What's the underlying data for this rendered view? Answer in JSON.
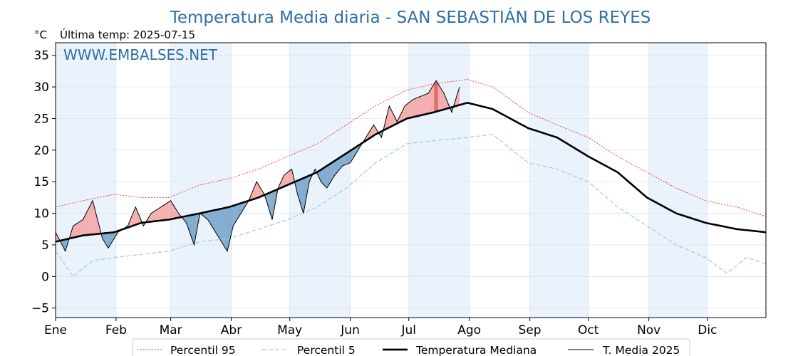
{
  "chart_data": {
    "type": "line",
    "title": "Temperatura Media diaria - SAN SEBASTIÁN DE LOS REYES",
    "y_unit": "°C",
    "last_temp_label": "Última temp: 2025-07-15",
    "watermark": "WWW.EMBALSES.NET",
    "x_ticks": [
      "Ene",
      "Feb",
      "Mar",
      "Abr",
      "May",
      "Jun",
      "Jul",
      "Ago",
      "Sep",
      "Oct",
      "Nov",
      "Dic"
    ],
    "y_ticks": [
      -5,
      0,
      5,
      10,
      15,
      20,
      25,
      30,
      35
    ],
    "ylim": [
      -6.5,
      37
    ],
    "xlim_days": [
      1,
      365
    ],
    "grid": true,
    "legend_position": "bottom-center",
    "colors": {
      "p95": "#e8312d",
      "p5": "#9ecde0",
      "median": "#000000",
      "current": "#000000",
      "above": "#f4a1a1",
      "above_extreme": "#e84a4a",
      "below": "#6f9fc7",
      "band": "#eaf3fb",
      "title": "#2e6fa7"
    },
    "series": [
      {
        "name": "Percentil 95",
        "style": "dotted-red",
        "key": "p95",
        "anchors": [
          [
            1,
            11
          ],
          [
            15,
            12
          ],
          [
            31,
            13
          ],
          [
            45,
            12.5
          ],
          [
            59,
            12.5
          ],
          [
            75,
            14.5
          ],
          [
            90,
            15.5
          ],
          [
            105,
            17
          ],
          [
            120,
            19
          ],
          [
            135,
            21
          ],
          [
            150,
            24
          ],
          [
            165,
            27
          ],
          [
            181,
            29.5
          ],
          [
            195,
            30.5
          ],
          [
            212,
            31.2
          ],
          [
            225,
            30
          ],
          [
            243,
            26
          ],
          [
            258,
            24
          ],
          [
            274,
            22
          ],
          [
            289,
            19
          ],
          [
            304,
            16.5
          ],
          [
            319,
            14
          ],
          [
            334,
            12
          ],
          [
            350,
            11
          ],
          [
            365,
            9.5
          ]
        ]
      },
      {
        "name": "Percentil 5",
        "style": "dashed-lightblue",
        "key": "p5",
        "anchors": [
          [
            1,
            4
          ],
          [
            10,
            0
          ],
          [
            20,
            2.5
          ],
          [
            31,
            3
          ],
          [
            45,
            3.5
          ],
          [
            59,
            4
          ],
          [
            75,
            5.5
          ],
          [
            90,
            6
          ],
          [
            105,
            7.5
          ],
          [
            120,
            9
          ],
          [
            135,
            11
          ],
          [
            150,
            14
          ],
          [
            165,
            18
          ],
          [
            181,
            21
          ],
          [
            195,
            21.5
          ],
          [
            212,
            22
          ],
          [
            225,
            22.5
          ],
          [
            243,
            18
          ],
          [
            258,
            17
          ],
          [
            274,
            15
          ],
          [
            289,
            11
          ],
          [
            304,
            8
          ],
          [
            319,
            5
          ],
          [
            334,
            3
          ],
          [
            345,
            0.5
          ],
          [
            355,
            3
          ],
          [
            365,
            2
          ]
        ]
      },
      {
        "name": "Temperatura Mediana",
        "style": "thick-black",
        "key": "median",
        "anchors": [
          [
            1,
            5.5
          ],
          [
            15,
            6.5
          ],
          [
            31,
            7
          ],
          [
            45,
            8.5
          ],
          [
            59,
            9
          ],
          [
            75,
            10
          ],
          [
            90,
            11
          ],
          [
            105,
            12.5
          ],
          [
            120,
            14.5
          ],
          [
            135,
            16.5
          ],
          [
            150,
            19.5
          ],
          [
            165,
            22.5
          ],
          [
            181,
            25
          ],
          [
            195,
            26
          ],
          [
            212,
            27.5
          ],
          [
            225,
            26.5
          ],
          [
            243,
            23.5
          ],
          [
            258,
            22
          ],
          [
            274,
            19
          ],
          [
            289,
            16.5
          ],
          [
            304,
            12.5
          ],
          [
            319,
            10
          ],
          [
            334,
            8.5
          ],
          [
            350,
            7.5
          ],
          [
            365,
            7
          ]
        ]
      },
      {
        "name": "T. Media 2025",
        "style": "thin-black",
        "key": "current",
        "anchors": [
          [
            1,
            7
          ],
          [
            6,
            4
          ],
          [
            10,
            8
          ],
          [
            15,
            9
          ],
          [
            20,
            12
          ],
          [
            25,
            6
          ],
          [
            28,
            4.5
          ],
          [
            33,
            7
          ],
          [
            38,
            8
          ],
          [
            42,
            11
          ],
          [
            46,
            8
          ],
          [
            50,
            10
          ],
          [
            55,
            11
          ],
          [
            60,
            12
          ],
          [
            64,
            10
          ],
          [
            68,
            8.5
          ],
          [
            72,
            5
          ],
          [
            75,
            10
          ],
          [
            79,
            9
          ],
          [
            83,
            7
          ],
          [
            86,
            5.5
          ],
          [
            89,
            4
          ],
          [
            92,
            8
          ],
          [
            96,
            10
          ],
          [
            100,
            12
          ],
          [
            104,
            15
          ],
          [
            108,
            13
          ],
          [
            112,
            9
          ],
          [
            115,
            14
          ],
          [
            118,
            16
          ],
          [
            122,
            17
          ],
          [
            125,
            13
          ],
          [
            128,
            10
          ],
          [
            131,
            15
          ],
          [
            134,
            17
          ],
          [
            137,
            15
          ],
          [
            140,
            14
          ],
          [
            144,
            16
          ],
          [
            148,
            17.5
          ],
          [
            152,
            18
          ],
          [
            156,
            20
          ],
          [
            160,
            22
          ],
          [
            164,
            24
          ],
          [
            168,
            22
          ],
          [
            172,
            27
          ],
          [
            176,
            24.5
          ],
          [
            180,
            27
          ],
          [
            184,
            28
          ],
          [
            188,
            28.5
          ],
          [
            192,
            29
          ],
          [
            196,
            31
          ],
          [
            200,
            29
          ],
          [
            204,
            26
          ],
          [
            208,
            30
          ]
        ]
      }
    ]
  },
  "legend": {
    "p95": "Percentil 95",
    "p5": "Percentil 5",
    "median": "Temperatura Mediana",
    "current": "T. Media 2025"
  }
}
